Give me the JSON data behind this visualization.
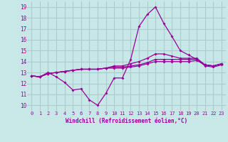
{
  "xlabel": "Windchill (Refroidissement éolien,°C)",
  "xlim": [
    -0.5,
    23.5
  ],
  "ylim": [
    9.5,
    19.5
  ],
  "xticks": [
    0,
    1,
    2,
    3,
    4,
    5,
    6,
    7,
    8,
    9,
    10,
    11,
    12,
    13,
    14,
    15,
    16,
    17,
    18,
    19,
    20,
    21,
    22,
    23
  ],
  "yticks": [
    10,
    11,
    12,
    13,
    14,
    15,
    16,
    17,
    18,
    19
  ],
  "bg_color": "#c8e8e8",
  "line_color": "#990099",
  "grid_color": "#aacccc",
  "lines": [
    {
      "x": [
        0,
        1,
        2,
        3,
        4,
        5,
        6,
        7,
        8,
        9,
        10,
        11,
        12,
        13,
        14,
        15,
        16,
        17,
        18,
        19,
        20,
        21,
        22,
        23
      ],
      "y": [
        12.7,
        12.6,
        13.0,
        12.6,
        12.1,
        11.4,
        11.5,
        10.5,
        10.0,
        11.1,
        12.5,
        12.5,
        14.2,
        17.2,
        18.3,
        19.0,
        17.5,
        16.3,
        15.0,
        14.6,
        14.2,
        13.6,
        13.5,
        13.7
      ]
    },
    {
      "x": [
        0,
        1,
        2,
        3,
        4,
        5,
        6,
        7,
        8,
        9,
        10,
        11,
        12,
        13,
        14,
        15,
        16,
        17,
        18,
        19,
        20,
        21,
        22,
        23
      ],
      "y": [
        12.7,
        12.6,
        12.9,
        13.0,
        13.1,
        13.2,
        13.3,
        13.3,
        13.3,
        13.4,
        13.4,
        13.4,
        13.5,
        13.6,
        13.8,
        14.0,
        14.0,
        14.0,
        14.0,
        14.0,
        14.1,
        13.7,
        13.6,
        13.8
      ]
    },
    {
      "x": [
        0,
        1,
        2,
        3,
        4,
        5,
        6,
        7,
        8,
        9,
        10,
        11,
        12,
        13,
        14,
        15,
        16,
        17,
        18,
        19,
        20,
        21,
        22,
        23
      ],
      "y": [
        12.7,
        12.6,
        12.9,
        13.0,
        13.1,
        13.2,
        13.3,
        13.3,
        13.3,
        13.4,
        13.5,
        13.5,
        13.6,
        13.7,
        13.9,
        14.2,
        14.2,
        14.2,
        14.2,
        14.2,
        14.2,
        13.7,
        13.6,
        13.8
      ]
    },
    {
      "x": [
        0,
        1,
        2,
        3,
        4,
        5,
        6,
        7,
        8,
        9,
        10,
        11,
        12,
        13,
        14,
        15,
        16,
        17,
        18,
        19,
        20,
        21,
        22,
        23
      ],
      "y": [
        12.7,
        12.6,
        12.9,
        13.0,
        13.1,
        13.2,
        13.3,
        13.3,
        13.3,
        13.4,
        13.6,
        13.6,
        13.8,
        14.0,
        14.3,
        14.7,
        14.7,
        14.5,
        14.3,
        14.3,
        14.3,
        13.7,
        13.6,
        13.8
      ]
    }
  ]
}
